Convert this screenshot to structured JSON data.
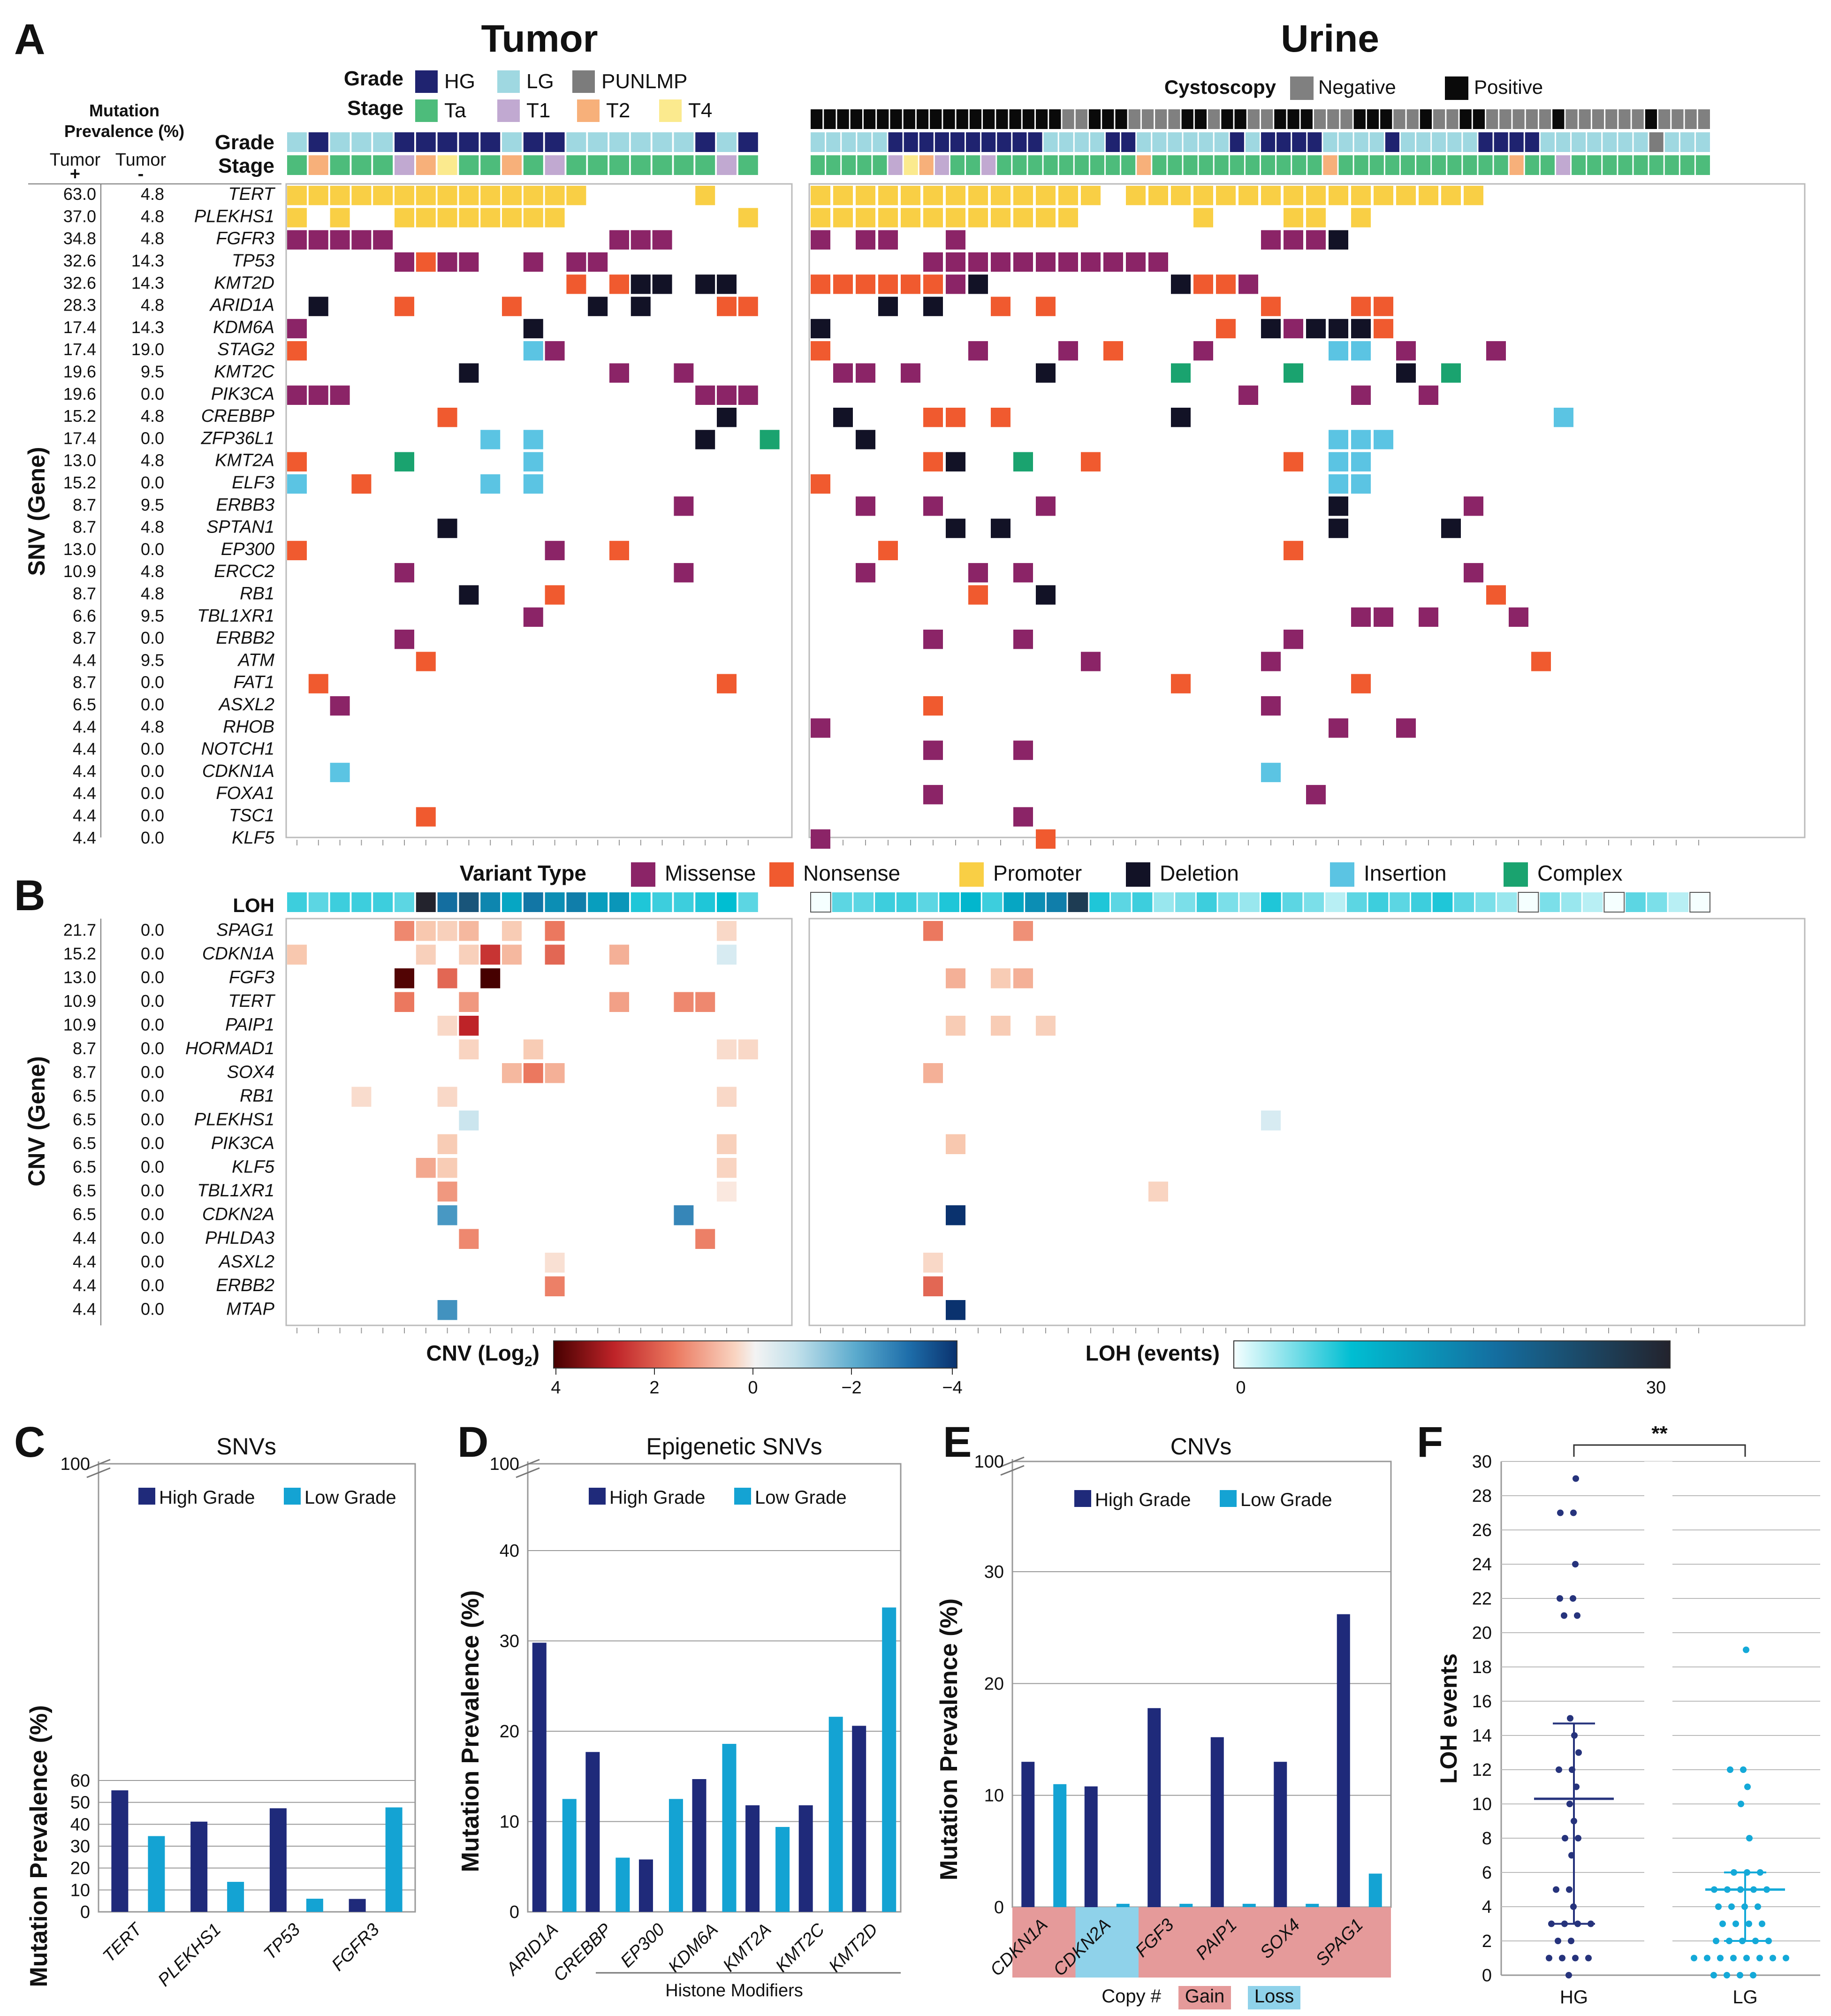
{
  "panels": {
    "A": {
      "letter": "A",
      "tumor_title": "Tumor",
      "urine_title": "Urine",
      "prev_header": "Mutation Prevalence (%)",
      "tumor_plus": "Tumor",
      "plus_sign": "+",
      "tumor_minus": "Tumor",
      "minus_sign": "-",
      "grade_label": "Grade",
      "stage_label": "Stage",
      "cysto_label": "Cystoscopy",
      "ylabel": "SNV (Gene)",
      "grade_legend": [
        {
          "label": "HG",
          "color": "#1f2370"
        },
        {
          "label": "LG",
          "color": "#9fd8e1"
        },
        {
          "label": "PUNLMP",
          "color": "#7c7c7c"
        }
      ],
      "stage_legend": [
        {
          "label": "Ta",
          "color": "#4dbc7b"
        },
        {
          "label": "T1",
          "color": "#c1a9d1"
        },
        {
          "label": "T2",
          "color": "#f7b07a"
        },
        {
          "label": "T4",
          "color": "#fbea8e"
        }
      ],
      "cysto_legend": [
        {
          "label": "Negative",
          "color": "#808080"
        },
        {
          "label": "Positive",
          "color": "#0a0a0a"
        }
      ],
      "genes": [
        "TERT",
        "PLEKHS1",
        "FGFR3",
        "TP53",
        "KMT2D",
        "ARID1A",
        "KDM6A",
        "STAG2",
        "KMT2C",
        "PIK3CA",
        "CREBBP",
        "ZFP36L1",
        "KMT2A",
        "ELF3",
        "ERBB3",
        "SPTAN1",
        "EP300",
        "ERCC2",
        "RB1",
        "TBL1XR1",
        "ERBB2",
        "ATM",
        "FAT1",
        "ASXL2",
        "RHOB",
        "NOTCH1",
        "CDKN1A",
        "FOXA1",
        "TSC1",
        "KLF5"
      ],
      "tumor_pos": [
        "63.0",
        "37.0",
        "34.8",
        "32.6",
        "32.6",
        "28.3",
        "17.4",
        "17.4",
        "19.6",
        "19.6",
        "15.2",
        "17.4",
        "13.0",
        "15.2",
        "8.7",
        "8.7",
        "13.0",
        "10.9",
        "8.7",
        "6.6",
        "8.7",
        "4.4",
        "8.7",
        "6.5",
        "4.4",
        "4.4",
        "4.4",
        "4.4",
        "4.4",
        "4.4"
      ],
      "tumor_neg": [
        "4.8",
        "4.8",
        "4.8",
        "14.3",
        "14.3",
        "4.8",
        "14.3",
        "19.0",
        "9.5",
        "0.0",
        "4.8",
        "0.0",
        "4.8",
        "0.0",
        "9.5",
        "4.8",
        "0.0",
        "4.8",
        "4.8",
        "9.5",
        "0.0",
        "9.5",
        "0.0",
        "0.0",
        "4.8",
        "0.0",
        "0.0",
        "0.0",
        "0.0",
        "0.0"
      ],
      "tumor_grade": "LHLLLHHHHHLHHLLLLLLHLH",
      "tumor_stage": "AOAAAIOPAAOAIAAAAAAAIA",
      "urine_grade": "LLLLLHHHHHHHHHHLLLLHHLLLLLLHLHHHHLLLLHLLLLLHHHHLLLLLLLPLLL",
      "urine_stage": "AAAAAIPOIAAIAAAAAAAAAOAAAAAAAAAAAOAAAAAAAAAAAOAAIAAAAAAAAA",
      "urine_cysto": "11111111111111111110011100001101100111000111001001100000100000010000"
    },
    "B": {
      "letter": "B",
      "loh_label": "LOH",
      "ylabel": "CNV (Gene)",
      "genes": [
        "SPAG1",
        "CDKN1A",
        "FGF3",
        "TERT",
        "PAIP1",
        "HORMAD1",
        "SOX4",
        "RB1",
        "PLEKHS1",
        "PIK3CA",
        "KLF5",
        "TBL1XR1",
        "CDKN2A",
        "PHLDA3",
        "ASXL2",
        "ERBB2",
        "MTAP"
      ],
      "tumor_pos": [
        "21.7",
        "15.2",
        "13.0",
        "10.9",
        "10.9",
        "8.7",
        "8.7",
        "6.5",
        "6.5",
        "6.5",
        "6.5",
        "6.5",
        "6.5",
        "4.4",
        "4.4",
        "4.4",
        "4.4"
      ],
      "tumor_neg": [
        "0.0",
        "0.0",
        "0.0",
        "0.0",
        "0.0",
        "0.0",
        "0.0",
        "0.0",
        "0.0",
        "0.0",
        "0.0",
        "0.0",
        "0.0",
        "0.0",
        "0.0",
        "0.0",
        "0.0"
      ],
      "cnv_scale_label": "CNV (Log",
      "cnv_scale_sub": "2",
      "cnv_scale_close": ")",
      "cnv_ticks": [
        "4",
        "2",
        "0",
        "−2",
        "−4"
      ],
      "loh_scale_label": "LOH (events)",
      "loh_ticks": [
        "0",
        "30"
      ]
    },
    "variant_legend": {
      "title": "Variant Type",
      "items": [
        {
          "label": "Missense",
          "color": "#8b2467"
        },
        {
          "label": "Nonsense",
          "color": "#f05a2f"
        },
        {
          "label": "Promoter",
          "color": "#f9cf45"
        },
        {
          "label": "Deletion",
          "color": "#121226"
        },
        {
          "label": "Insertion",
          "color": "#5bc4e3"
        },
        {
          "label": "Complex",
          "color": "#1aa36f"
        }
      ]
    },
    "C": {
      "letter": "C",
      "title": "SNVs"
    },
    "D": {
      "letter": "D",
      "title": "Epigenetic SNVs",
      "group_label": "Histone Modifiers"
    },
    "E": {
      "letter": "E",
      "title": "CNVs",
      "copy_label": "Copy #",
      "gain_label": "Gain",
      "loss_label": "Loss"
    },
    "F": {
      "letter": "F",
      "ylabel": "LOH events",
      "significance": "**"
    }
  },
  "chart_data": [
    {
      "type": "bar",
      "panel": "C",
      "title": "SNVs",
      "ylabel": "Mutation Prevalence (%)",
      "categories": [
        "TERT",
        "PLEKHS1",
        "TP53",
        "FGFR3"
      ],
      "series": [
        {
          "name": "High Grade",
          "color": "#1f2a7a",
          "values": [
            55.5,
            41.2,
            47.3,
            5.9
          ]
        },
        {
          "name": "Low Grade",
          "color": "#14a3d3",
          "values": [
            34.6,
            13.7,
            6.0,
            47.7
          ]
        }
      ],
      "yticks": [
        "0",
        "10",
        "20",
        "30",
        "40",
        "50",
        "60",
        "100"
      ],
      "ylim": [
        0,
        60
      ],
      "axis_break": true
    },
    {
      "type": "bar",
      "panel": "D",
      "title": "Epigenetic SNVs",
      "ylabel": "Mutation Prevalence (%)",
      "categories": [
        "ARID1A",
        "CREBBP",
        "EP300",
        "KDM6A",
        "KMT2A",
        "KMT2C",
        "KMT2D"
      ],
      "series": [
        {
          "name": "High Grade",
          "color": "#1f2a7a",
          "values": [
            29.8,
            17.7,
            5.8,
            14.7,
            11.8,
            11.8,
            20.6
          ]
        },
        {
          "name": "Low Grade",
          "color": "#14a3d3",
          "values": [
            12.5,
            6.0,
            12.5,
            18.6,
            9.4,
            21.6,
            33.7
          ]
        }
      ],
      "yticks": [
        "0",
        "10",
        "20",
        "30",
        "40",
        "100"
      ],
      "ylim": [
        0,
        40
      ],
      "axis_break": true
    },
    {
      "type": "bar",
      "panel": "E",
      "title": "CNVs",
      "ylabel": "Mutation Prevalence (%)",
      "categories": [
        "CDKN1A",
        "CDKN2A",
        "FGF3",
        "PAIP1",
        "SOX4",
        "SPAG1"
      ],
      "copy": [
        "Gain",
        "Loss",
        "Gain",
        "Gain",
        "Gain",
        "Gain"
      ],
      "series": [
        {
          "name": "High Grade",
          "color": "#1f2a7a",
          "values": [
            13.0,
            10.8,
            17.8,
            15.2,
            13.0,
            26.2
          ]
        },
        {
          "name": "Low Grade",
          "color": "#14a3d3",
          "values": [
            11.0,
            0.3,
            0.3,
            0.3,
            0.3,
            3.0
          ]
        }
      ],
      "yticks": [
        "0",
        "10",
        "20",
        "30",
        "100"
      ],
      "ylim": [
        0,
        30
      ],
      "axis_break": true
    },
    {
      "type": "scatter",
      "panel": "F",
      "ylabel": "LOH events",
      "categories": [
        "HG",
        "LG"
      ],
      "yticks": [
        "0",
        "2",
        "4",
        "6",
        "8",
        "10",
        "12",
        "14",
        "16",
        "18",
        "20",
        "22",
        "24",
        "26",
        "28",
        "30"
      ],
      "ylim": [
        0,
        30
      ],
      "series": [
        {
          "name": "HG",
          "color": "#26337c",
          "mean": 10.3,
          "sd_low": 3,
          "sd_high": 14.7,
          "values": [
            29,
            27,
            27,
            24,
            22,
            22,
            21,
            21,
            15,
            14,
            13,
            12,
            12,
            11,
            10,
            9,
            8,
            8,
            7,
            5,
            5,
            4,
            3,
            3,
            3,
            3,
            2,
            2,
            1,
            1,
            1,
            1,
            0
          ]
        },
        {
          "name": "LG",
          "color": "#14a9d8",
          "mean": 5,
          "sd_low": 2,
          "sd_high": 6,
          "values": [
            19,
            12,
            12,
            11,
            10,
            8,
            6,
            6,
            6,
            5,
            5,
            5,
            5,
            5,
            4,
            4,
            4,
            4,
            3,
            3,
            3,
            3,
            2,
            2,
            2,
            2,
            2,
            1,
            1,
            1,
            1,
            1,
            1,
            1,
            1,
            0,
            0,
            0,
            0
          ]
        }
      ]
    }
  ]
}
